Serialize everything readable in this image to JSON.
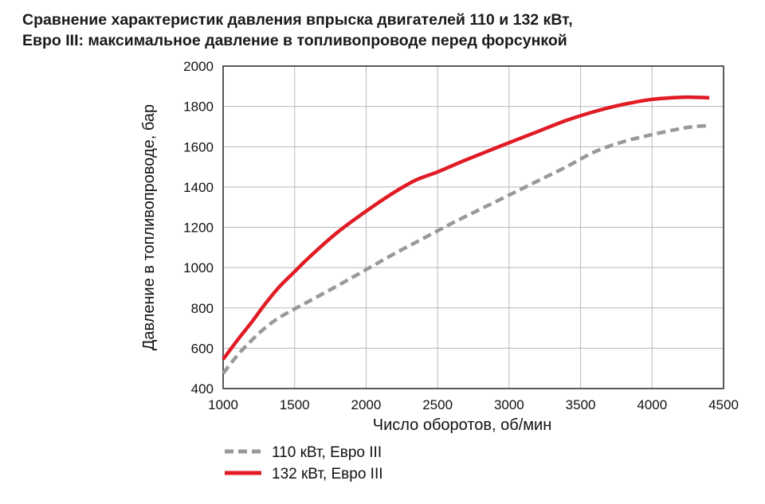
{
  "chart_data": {
    "type": "line",
    "title_line1": "Сравнение характеристик давления впрыска двигателей 110 и 132 кВт,",
    "title_line2": "Евро III: максимальное давление в топливопроводе перед форсункой",
    "xlabel": "Число оборотов, об/мин",
    "ylabel": "Давление в топливопроводе, бар",
    "xlim": [
      1000,
      4500
    ],
    "ylim": [
      400,
      2000
    ],
    "x_ticks": [
      1000,
      1500,
      2000,
      2500,
      3000,
      3500,
      4000,
      4500
    ],
    "y_ticks": [
      400,
      600,
      800,
      1000,
      1200,
      1400,
      1600,
      1800,
      2000
    ],
    "x_tick_labels": [
      "1000",
      "1500",
      "2000",
      "2500",
      "3000",
      "3500",
      "4000",
      "4500"
    ],
    "y_tick_labels": [
      "400",
      "600",
      "800",
      "1000",
      "1200",
      "1400",
      "1600",
      "1800",
      "2000"
    ],
    "grid": true,
    "legend_position": "bottom-left",
    "series": [
      {
        "name": "110 кВт, Евро III",
        "color": "#999999",
        "style": "dashed",
        "x": [
          1000,
          1100,
          1200,
          1300,
          1400,
          1500,
          1600,
          1800,
          2000,
          2200,
          2400,
          2600,
          2800,
          3000,
          3200,
          3400,
          3600,
          3800,
          4000,
          4200,
          4300,
          4400
        ],
        "y": [
          475,
          565,
          640,
          705,
          755,
          795,
          833,
          910,
          990,
          1070,
          1145,
          1220,
          1290,
          1360,
          1430,
          1500,
          1575,
          1625,
          1660,
          1690,
          1700,
          1705
        ]
      },
      {
        "name": "132 кВт, Евро III",
        "color": "#e01b24",
        "style": "solid",
        "x": [
          1000,
          1100,
          1200,
          1300,
          1400,
          1500,
          1600,
          1800,
          2000,
          2200,
          2350,
          2500,
          2700,
          3000,
          3200,
          3400,
          3600,
          3800,
          4000,
          4200,
          4300,
          4400
        ],
        "y": [
          545,
          640,
          730,
          825,
          910,
          980,
          1050,
          1175,
          1280,
          1375,
          1435,
          1475,
          1535,
          1620,
          1675,
          1730,
          1775,
          1810,
          1835,
          1845,
          1845,
          1843
        ]
      }
    ]
  }
}
